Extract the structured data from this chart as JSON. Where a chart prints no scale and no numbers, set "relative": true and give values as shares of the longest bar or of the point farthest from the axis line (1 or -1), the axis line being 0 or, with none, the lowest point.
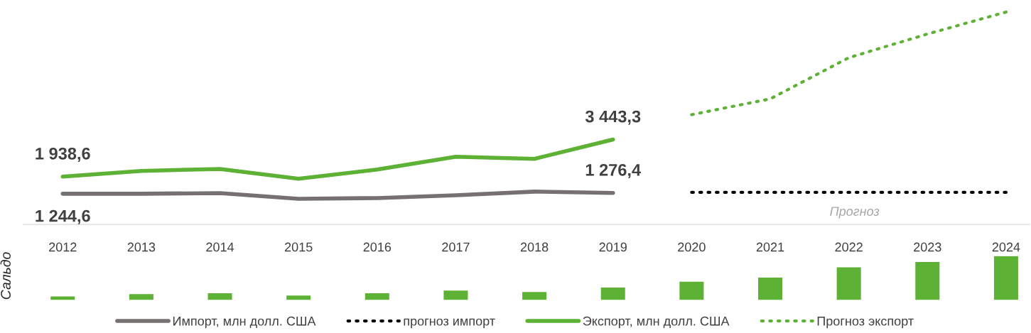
{
  "chart_data": [
    {
      "type": "line",
      "categories": [
        "2012",
        "2013",
        "2014",
        "2015",
        "2016",
        "2017",
        "2018",
        "2019",
        "2020",
        "2021",
        "2022",
        "2023",
        "2024"
      ],
      "tick_labels": "x",
      "grid": false,
      "legend": "bottom",
      "marker": "none",
      "series": [
        {
          "name": "Импорт, млн долл. США",
          "color": "#767171",
          "line_style": "solid",
          "values": [
            1244.6,
            1245,
            1270,
            1040,
            1070,
            1185,
            1330,
            1276.4,
            null,
            null,
            null,
            null,
            null
          ],
          "value_labels": [
            "1 244,6",
            null,
            null,
            null,
            null,
            null,
            null,
            "1 276,4",
            null,
            null,
            null,
            null,
            null
          ]
        },
        {
          "name": "прогноз импорт",
          "color": "#000000",
          "line_style": "dotted",
          "values": [
            null,
            null,
            null,
            null,
            null,
            null,
            null,
            null,
            1300,
            1300,
            1300,
            1300,
            1300
          ]
        },
        {
          "name": "Экспорт, млн долл. США",
          "color": "#5db135",
          "line_style": "solid",
          "values": [
            1938.6,
            2170,
            2250,
            1850,
            2225,
            2745,
            2660,
            3443.3,
            null,
            null,
            null,
            null,
            null
          ],
          "value_labels": [
            "1 938,6",
            null,
            null,
            null,
            null,
            null,
            null,
            "3 443,3",
            null,
            null,
            null,
            null,
            null
          ]
        },
        {
          "name": "Прогноз экспорт",
          "color": "#5db135",
          "line_style": "dotted",
          "values": [
            null,
            null,
            null,
            null,
            null,
            null,
            null,
            null,
            4450,
            5090,
            6760,
            7720,
            8610
          ]
        }
      ],
      "annotations": [
        "Прогноз"
      ]
    },
    {
      "type": "bar",
      "relative": true,
      "ylabel": "Сальдо",
      "tick_labels": false,
      "categories": [
        "2012",
        "2013",
        "2014",
        "2015",
        "2016",
        "2017",
        "2018",
        "2019",
        "2020",
        "2021",
        "2022",
        "2023",
        "2024"
      ],
      "color": "#5db135",
      "values": [
        0.1,
        0.15,
        0.17,
        0.12,
        0.17,
        0.23,
        0.2,
        0.3,
        0.43,
        0.52,
        0.75,
        0.87,
        1
      ]
    }
  ]
}
